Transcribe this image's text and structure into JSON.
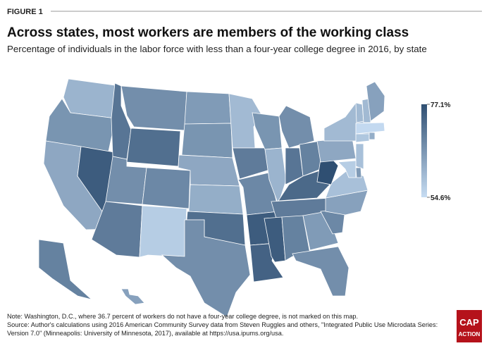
{
  "figure_label": "FIGURE 1",
  "chart_data": {
    "type": "choropleth",
    "title": "Across states, most workers are members of the working class",
    "subtitle": "Percentage of individuals in the labor force with less than a four-year college degree in 2016, by state",
    "values": [
      61,
      66,
      63,
      75,
      71,
      67,
      72,
      67,
      68,
      70,
      57,
      65,
      66,
      63,
      62,
      72,
      67,
      60,
      70,
      68,
      75,
      74,
      66,
      61,
      67,
      71,
      69,
      73,
      70,
      75,
      69,
      65,
      67,
      68,
      64,
      59,
      77.1,
      63,
      60,
      60,
      60,
      64,
      55,
      58,
      62,
      59,
      65,
      57,
      69,
      64
    ],
    "color_low": "#c6dcf2",
    "color_high": "#2f4f72",
    "legend": {
      "max": {
        "value": 77.1,
        "label": "77.1%"
      },
      "min": {
        "value": 54.6,
        "label": "54.6%"
      }
    }
  },
  "notes": [
    "Note: Washington, D.C., where 36.7 percent of workers do not have a four-year college degree, is not marked on this map.",
    "Source: Author's calculations using 2016 American Community Survey data from Steven Ruggles and others, \"Integrated Public Use Microdata Series:",
    "Version 7.0\" (Minneapolis: University of Minnesota, 2017), available at https://usa.ipums.org/usa."
  ],
  "logo": [
    "CAP",
    "ACTION"
  ]
}
